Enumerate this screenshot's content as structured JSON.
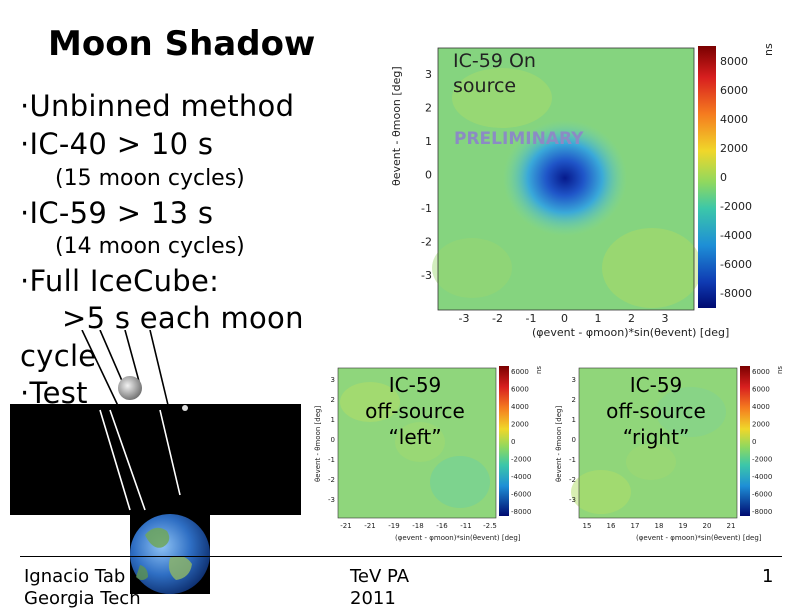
{
  "slide": {
    "title": "Moon Shadow",
    "bullets": {
      "b1": "·Unbinned method",
      "b2": "·IC-40 > 10 s",
      "b2_sub": "(15 moon cycles)",
      "b3": "·IC-59 > 13 s",
      "b3_sub": "(14 moon cycles)",
      "b4": "·Full IceCube:",
      "b4_cont": ">5 s each moon",
      "b4_cont2": "cycle",
      "b5": "·Test"
    },
    "footer": {
      "author": "Ignacio Tab",
      "institution": "Georgia Tech",
      "conference": "TeV PA",
      "year": "2011",
      "page": "1"
    }
  },
  "main_map": {
    "label_line1": "IC-59 On",
    "label_line2": "source",
    "watermark": "PRELIMINARY",
    "ylabel": "θevent - θmoon [deg]",
    "xlabel": "(φevent - φmoon)*sin(θevent) [deg]",
    "zlabel": "ns",
    "x_ticks": [
      "-3",
      "-2",
      "-1",
      "0",
      "1",
      "2",
      "3"
    ],
    "y_ticks": [
      "3",
      "2",
      "1",
      "0",
      "-1",
      "-2",
      "-3"
    ],
    "z_ticks": [
      "8000",
      "6000",
      "4000",
      "2000",
      "0",
      "-2000",
      "-4000",
      "-6000",
      "-8000"
    ]
  },
  "left_map": {
    "label_line1": "IC-59",
    "label_line2": "off-source",
    "label_line3": "“left”",
    "ylabel": "θevent - θmoon [deg]",
    "xlabel": "(φevent - φmoon)*sin(θevent) [deg]",
    "zlabel": "ns",
    "x_ticks": [
      "-21",
      "-21",
      "-19",
      "-18",
      "-16",
      "-11",
      "-2.5"
    ],
    "y_ticks": [
      "3",
      "2",
      "1",
      "0",
      "-1",
      "-2",
      "-3"
    ],
    "z_ticks": [
      "6000",
      "6000",
      "4000",
      "2000",
      "0",
      "-2000",
      "-4000",
      "-6000",
      "-8000"
    ]
  },
  "right_map": {
    "label_line1": "IC-59",
    "label_line2": "off-source",
    "label_line3": "“right”",
    "ylabel": "θevent - θmoon [deg]",
    "xlabel": "(φevent - φmoon)*sin(θevent) [deg]",
    "zlabel": "ns",
    "x_ticks": [
      "15",
      "16",
      "17",
      "18",
      "19",
      "20",
      "21"
    ],
    "y_ticks": [
      "3",
      "2",
      "1",
      "0",
      "-1",
      "-2",
      "-3"
    ],
    "z_ticks": [
      "6000",
      "6000",
      "4000",
      "2000",
      "0",
      "-2000",
      "-4000",
      "-6000",
      "-8000"
    ]
  },
  "colors": {
    "map_base": "#80d68a",
    "shadow": "#0a1f9c",
    "band": "#000000"
  }
}
